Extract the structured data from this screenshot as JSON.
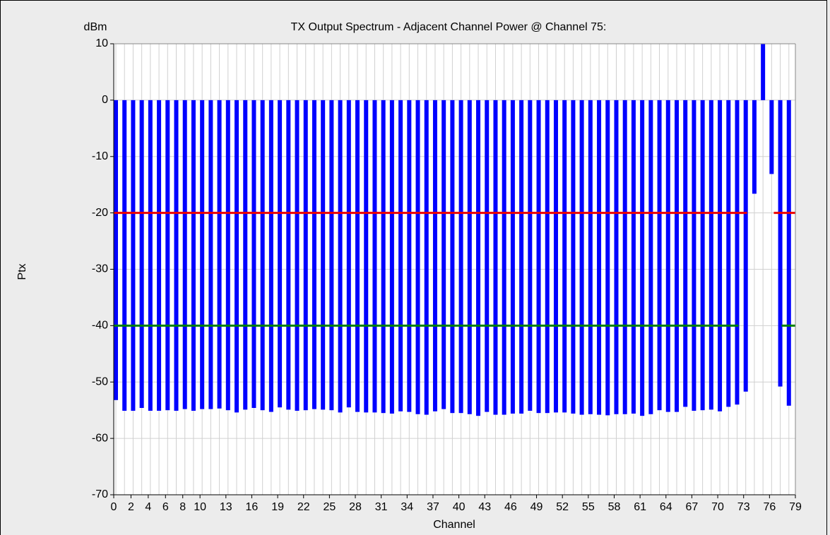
{
  "chart_data": {
    "type": "bar",
    "title": "TX Output Spectrum - Adjacent Channel Power @ Channel 75:",
    "y_unit": "dBm",
    "y_label": "Ptx",
    "x_label": "Channel",
    "color": "#0000ff",
    "x": [
      0,
      1,
      2,
      3,
      4,
      5,
      6,
      7,
      8,
      9,
      10,
      11,
      12,
      13,
      14,
      15,
      16,
      17,
      18,
      19,
      20,
      21,
      22,
      23,
      24,
      25,
      26,
      27,
      28,
      29,
      30,
      31,
      32,
      33,
      34,
      35,
      36,
      37,
      38,
      39,
      40,
      41,
      42,
      43,
      44,
      45,
      46,
      47,
      48,
      49,
      50,
      51,
      52,
      53,
      54,
      55,
      56,
      57,
      58,
      59,
      60,
      61,
      62,
      63,
      64,
      65,
      66,
      67,
      68,
      69,
      70,
      71,
      72,
      73,
      74,
      75,
      76,
      77,
      78
    ],
    "values": [
      -53.2,
      -55.1,
      -55.1,
      -54.6,
      -55.1,
      -55.1,
      -55,
      -55.1,
      -54.8,
      -55.1,
      -54.8,
      -54.8,
      -54.7,
      -55,
      -55.4,
      -54.9,
      -54.6,
      -55,
      -55.3,
      -54.5,
      -54.9,
      -55.1,
      -55,
      -54.8,
      -54.9,
      -55,
      -55.4,
      -54.5,
      -55.3,
      -55.4,
      -55.4,
      -55.5,
      -55.6,
      -55.2,
      -55.3,
      -55.7,
      -55.8,
      -55.2,
      -54.8,
      -55.5,
      -55.5,
      -55.7,
      -56,
      -55.3,
      -55.8,
      -55.8,
      -55.6,
      -55.6,
      -55.1,
      -55.5,
      -55.5,
      -55.4,
      -55.4,
      -55.6,
      -55.8,
      -55.7,
      -55.8,
      -55.9,
      -55.7,
      -55.7,
      -55.6,
      -56,
      -55.7,
      -55,
      -55.3,
      -55.3,
      -54.4,
      -55.1,
      -55,
      -54.9,
      -55.2,
      -54.4,
      -54,
      -51.7,
      -16.6,
      10,
      -13.1,
      -50.8,
      -54.2
    ],
    "xlim": [
      0,
      79
    ],
    "xticks": [
      0,
      2,
      4,
      6,
      8,
      10,
      13,
      16,
      19,
      22,
      25,
      28,
      31,
      34,
      37,
      40,
      43,
      46,
      49,
      52,
      55,
      58,
      61,
      64,
      67,
      70,
      73,
      76,
      79
    ],
    "ylim": [
      -70,
      10
    ],
    "yticks": [
      -70,
      -60,
      -50,
      -40,
      -30,
      -20,
      -10,
      0,
      10
    ],
    "grid": true,
    "limit_lines": [
      {
        "value": -20,
        "color": "#ee0000",
        "segments": [
          [
            0,
            73.4
          ],
          [
            76.5,
            79
          ]
        ]
      },
      {
        "value": -40,
        "color": "#008000",
        "segments": [
          [
            0,
            72.4
          ],
          [
            77.4,
            79
          ]
        ]
      }
    ]
  }
}
